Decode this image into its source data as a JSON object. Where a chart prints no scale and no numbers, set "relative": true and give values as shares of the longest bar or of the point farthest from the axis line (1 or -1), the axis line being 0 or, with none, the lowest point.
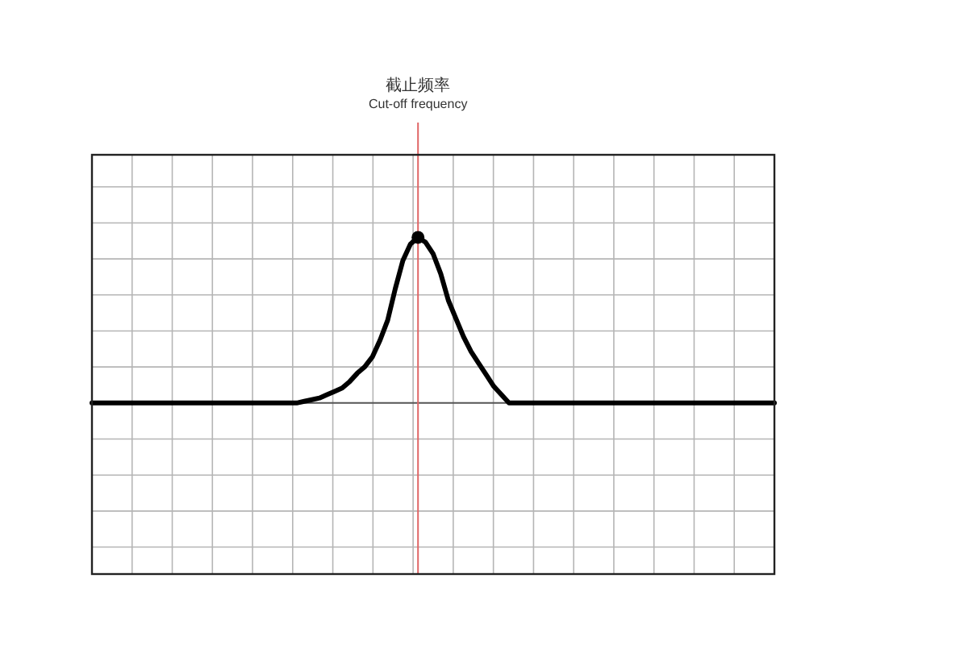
{
  "chart_data": {
    "type": "line",
    "relative": true,
    "grid": true,
    "marker": "none",
    "categories": [
      null,
      null,
      null,
      null,
      null,
      null,
      null,
      null,
      null,
      null,
      null,
      null,
      null,
      null,
      null,
      null,
      null,
      null,
      null,
      null,
      null,
      null,
      null,
      null,
      null,
      null,
      null,
      null,
      null,
      null,
      null,
      null,
      null,
      null,
      null,
      null,
      null,
      null,
      null,
      null,
      null,
      null,
      null,
      null,
      null,
      null,
      null,
      null,
      null,
      null,
      null,
      null,
      null,
      null,
      null,
      null,
      null,
      null,
      null,
      null,
      null,
      null,
      null,
      null,
      null,
      null,
      null,
      null,
      null,
      null,
      null,
      null,
      null,
      null,
      null,
      null,
      null,
      null,
      null,
      null,
      null,
      null,
      null,
      null,
      null,
      null,
      null,
      null,
      null,
      null,
      null
    ],
    "series": [
      {
        "color": "#000000",
        "values": [
          0,
          0,
          0,
          0,
          0,
          0,
          0,
          0,
          0,
          0,
          0,
          0,
          0,
          0,
          0,
          0,
          0,
          0,
          0,
          0,
          0,
          0,
          0,
          0,
          0,
          0,
          0,
          0,
          0.01,
          0.02,
          0.03,
          0.05,
          0.07,
          0.09,
          0.13,
          0.18,
          0.22,
          0.28,
          0.38,
          0.5,
          0.69,
          0.86,
          0.96,
          1,
          0.97,
          0.9,
          0.78,
          0.62,
          0.51,
          0.4,
          0.31,
          0.24,
          0.17,
          0.1,
          0.05,
          0,
          0,
          0,
          0,
          0,
          0,
          0,
          0,
          0,
          0,
          0,
          0,
          0,
          0,
          0,
          0,
          0,
          0,
          0,
          0,
          0,
          0,
          0,
          0,
          0,
          0,
          0,
          0,
          0,
          0,
          0,
          0,
          0,
          0,
          0,
          0
        ]
      }
    ],
    "annotations": [
      "截止频率\nCut-off frequency"
    ]
  }
}
